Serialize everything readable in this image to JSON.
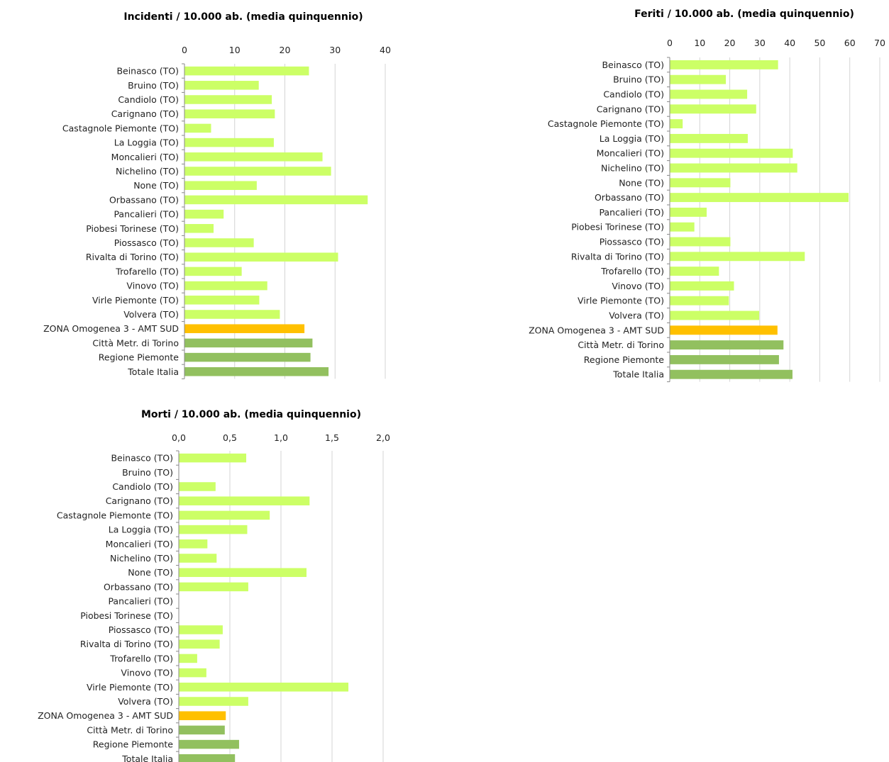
{
  "colors": {
    "comune": "#ccff66",
    "zona": "#ffc000",
    "riferimento": "#92c05f"
  },
  "chart_data": [
    {
      "type": "bar",
      "orientation": "horizontal",
      "title": "Incidenti / 10.000  ab. (media quinquennio)",
      "categories": [
        "Beinasco (TO)",
        "Bruino (TO)",
        "Candiolo (TO)",
        "Carignano (TO)",
        "Castagnole Piemonte (TO)",
        "La Loggia (TO)",
        "Moncalieri (TO)",
        "Nichelino (TO)",
        "None (TO)",
        "Orbassano (TO)",
        "Pancalieri (TO)",
        "Piobesi Torinese (TO)",
        "Piossasco (TO)",
        "Rivalta di Torino (TO)",
        "Trofarello (TO)",
        "Vinovo (TO)",
        "Virle Piemonte (TO)",
        "Volvera (TO)",
        "ZONA Omogenea 3 - AMT SUD",
        "Città Metr. di Torino",
        "Regione Piemonte",
        "Totale Italia"
      ],
      "values": [
        24.8,
        14.8,
        17.4,
        18.0,
        5.3,
        17.8,
        27.5,
        29.2,
        14.4,
        36.5,
        7.8,
        5.8,
        13.8,
        30.6,
        11.4,
        16.5,
        14.9,
        19.0,
        23.9,
        25.5,
        25.1,
        28.7
      ],
      "tick_labels": [
        "0",
        "10",
        "20",
        "30",
        "40"
      ],
      "xlim": [
        0,
        40
      ],
      "grid": true
    },
    {
      "type": "bar",
      "orientation": "horizontal",
      "title": "Feriti / 10.000  ab. (media quinquennio)",
      "categories": [
        "Beinasco (TO)",
        "Bruino (TO)",
        "Candiolo (TO)",
        "Carignano (TO)",
        "Castagnole Piemonte (TO)",
        "La Loggia (TO)",
        "Moncalieri (TO)",
        "Nichelino (TO)",
        "None (TO)",
        "Orbassano (TO)",
        "Pancalieri (TO)",
        "Piobesi Torinese (TO)",
        "Piossasco (TO)",
        "Rivalta di Torino (TO)",
        "Trofarello (TO)",
        "Vinovo (TO)",
        "Virle Piemonte (TO)",
        "Volvera (TO)",
        "ZONA Omogenea 3 - AMT SUD",
        "Città Metr. di Torino",
        "Regione Piemonte",
        "Totale Italia"
      ],
      "values": [
        36.1,
        18.7,
        25.8,
        28.8,
        4.3,
        26.0,
        41.0,
        42.5,
        20.2,
        59.6,
        12.3,
        8.2,
        20.2,
        45.0,
        16.4,
        21.4,
        19.7,
        29.8,
        35.9,
        37.9,
        36.4,
        40.9
      ],
      "tick_labels": [
        "0",
        "10",
        "20",
        "30",
        "40",
        "50",
        "60",
        "70"
      ],
      "xlim": [
        0,
        70
      ],
      "grid": true
    },
    {
      "type": "bar",
      "orientation": "horizontal",
      "title": "Morti / 10.000  ab. (media quinquennio)",
      "categories": [
        "Beinasco (TO)",
        "Bruino (TO)",
        "Candiolo (TO)",
        "Carignano (TO)",
        "Castagnole Piemonte (TO)",
        "La Loggia (TO)",
        "Moncalieri (TO)",
        "Nichelino (TO)",
        "None (TO)",
        "Orbassano (TO)",
        "Pancalieri (TO)",
        "Piobesi Torinese (TO)",
        "Piossasco (TO)",
        "Rivalta di Torino (TO)",
        "Trofarello (TO)",
        "Vinovo (TO)",
        "Virle Piemonte (TO)",
        "Volvera (TO)",
        "ZONA Omogenea 3 - AMT SUD",
        "Città Metr. di Torino",
        "Regione Piemonte",
        "Totale Italia"
      ],
      "values": [
        0.66,
        0,
        0.36,
        1.28,
        0.89,
        0.67,
        0.28,
        0.37,
        1.25,
        0.68,
        0,
        0,
        0.43,
        0.4,
        0.18,
        0.27,
        1.66,
        0.68,
        0.46,
        0.45,
        0.59,
        0.55
      ],
      "tick_labels": [
        "0,0",
        "0,5",
        "1,0",
        "1,5",
        "2,0"
      ],
      "xlim": [
        0,
        2
      ],
      "grid": true
    }
  ]
}
